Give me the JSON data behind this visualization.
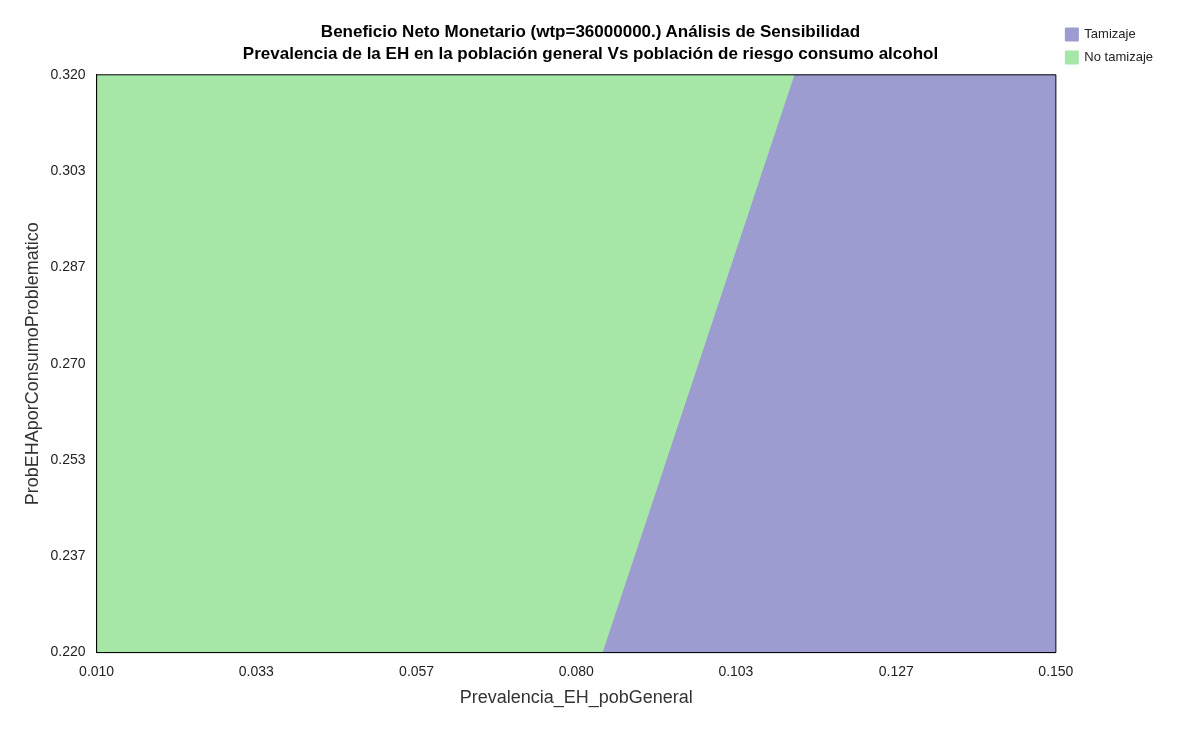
{
  "chart_data": {
    "type": "area",
    "title": "Beneficio Neto Monetario (wtp=36000000.) Análisis de Sensibilidad",
    "subtitle": "Prevalencia de la EH en la población general Vs población de riesgo consumo alcohol",
    "xlabel": "Prevalencia_EH_pobGeneral",
    "ylabel": "ProbEHAporConsumoProblematico",
    "xlim": [
      0.01,
      0.15
    ],
    "xticks": [
      {
        "value": 0.01,
        "label": "0.010"
      },
      {
        "value": 0.0333,
        "label": "0.033"
      },
      {
        "value": 0.0567,
        "label": "0.057"
      },
      {
        "value": 0.08,
        "label": "0.080"
      },
      {
        "value": 0.1033,
        "label": "0.103"
      },
      {
        "value": 0.1267,
        "label": "0.127"
      },
      {
        "value": 0.15,
        "label": "0.150"
      }
    ],
    "ylim": [
      0.22,
      0.32
    ],
    "yticks": [
      {
        "value": 0.22,
        "label": "0.220"
      },
      {
        "value": 0.2367,
        "label": "0.237"
      },
      {
        "value": 0.2533,
        "label": "0.253"
      },
      {
        "value": 0.27,
        "label": "0.270"
      },
      {
        "value": 0.2867,
        "label": "0.287"
      },
      {
        "value": 0.3033,
        "label": "0.303"
      },
      {
        "value": 0.32,
        "label": "0.320"
      }
    ],
    "legend": "top right",
    "grid": false,
    "series": [
      {
        "name": "Tamizaje",
        "color": "#9c9cd0",
        "x": [
          0.084,
          0.112,
          0.15
        ],
        "values": [
          0.22,
          0.32,
          0.32
        ]
      },
      {
        "name": "No tamizaje",
        "color": "#a6e6a6",
        "x": [
          0.01,
          0.112
        ],
        "values": [
          0.32,
          0.32
        ]
      }
    ]
  }
}
